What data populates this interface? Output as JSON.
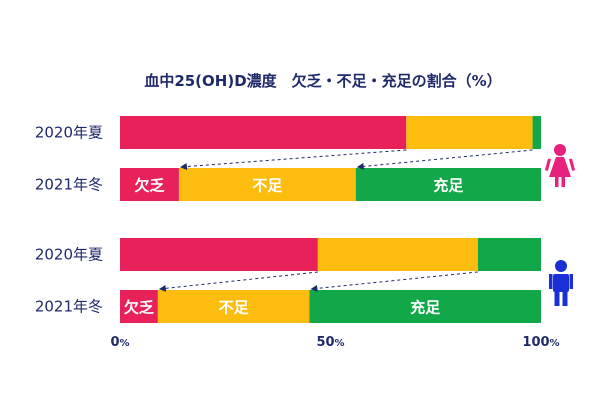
{
  "chart_data": {
    "type": "bar",
    "stacked": true,
    "orientation": "horizontal",
    "title": "血中25(OH)D濃度　欠乏・不足・充足の割合（%）",
    "series": [
      {
        "name": "欠乏",
        "color": "#e8215a"
      },
      {
        "name": "不足",
        "color": "#fdbd0f"
      },
      {
        "name": "充足",
        "color": "#12a84a"
      }
    ],
    "rows": [
      {
        "group": "female",
        "label": "2020年夏",
        "values": [
          68,
          30,
          2
        ],
        "labeled": false
      },
      {
        "group": "female",
        "label": "2021年冬",
        "values": [
          14,
          42,
          44
        ],
        "labeled": true
      },
      {
        "group": "male",
        "label": "2020年夏",
        "values": [
          47,
          38,
          15
        ],
        "labeled": false
      },
      {
        "group": "male",
        "label": "2021年冬",
        "values": [
          9,
          36,
          55
        ],
        "labeled": true
      }
    ],
    "x_ticks": [
      {
        "value": 0,
        "label": "0",
        "unit": "%"
      },
      {
        "value": 50,
        "label": "50",
        "unit": "%"
      },
      {
        "value": 100,
        "label": "100",
        "unit": "%"
      }
    ],
    "xlim": [
      0,
      100
    ],
    "annotations": "dashed arrows from 2020 summer segment boundaries to 2021 winter segment boundaries"
  },
  "icons": {
    "female": {
      "name": "female-person-icon",
      "color": "#e8207e"
    },
    "male": {
      "name": "male-person-icon",
      "color": "#1a2fd6"
    }
  }
}
